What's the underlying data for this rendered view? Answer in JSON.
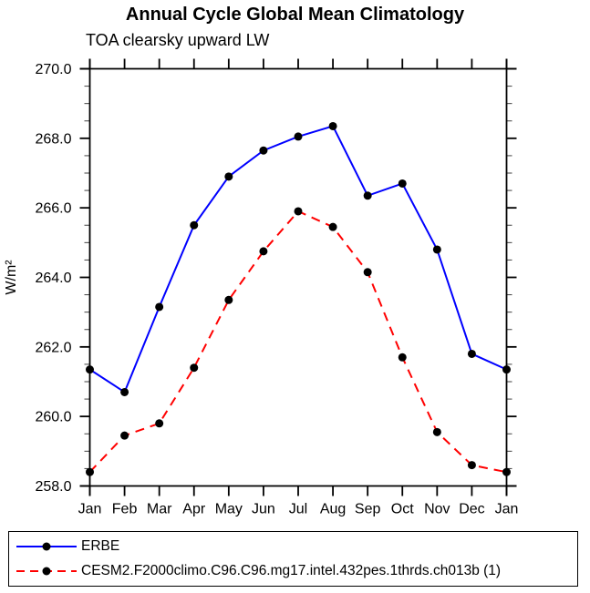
{
  "title": "Annual Cycle Global Mean Climatology",
  "subtitle": "TOA clearsky upward LW",
  "chart_data": {
    "type": "line",
    "x_categories": [
      "Jan",
      "Feb",
      "Mar",
      "Apr",
      "May",
      "Jun",
      "Jul",
      "Aug",
      "Sep",
      "Oct",
      "Nov",
      "Dec",
      "Jan"
    ],
    "xlabel": "",
    "ylabel": "W/m²",
    "ylim": [
      258.0,
      270.0
    ],
    "ytick_major_interval": 2.0,
    "ytick_minor_interval": 0.5,
    "ytick_labels": [
      "258.0",
      "260.0",
      "262.0",
      "264.0",
      "266.0",
      "268.0",
      "270.0"
    ],
    "grid": "off",
    "legend_position": "bottom",
    "frame_color": "#000000",
    "series": [
      {
        "name": "ERBE",
        "color": "#0000ff",
        "line_style": "solid",
        "marker": "filled-circle",
        "marker_color": "#000000",
        "values": [
          261.35,
          260.7,
          263.15,
          265.5,
          266.9,
          267.65,
          268.05,
          268.35,
          266.35,
          266.7,
          264.8,
          261.8,
          261.35
        ]
      },
      {
        "name": "CESM2.F2000climo.C96.C96.mg17.intel.432pes.1thrds.ch013b (1)",
        "color": "#ff0000",
        "line_style": "dashed",
        "marker": "filled-circle",
        "marker_color": "#000000",
        "values": [
          258.4,
          259.45,
          259.8,
          261.4,
          263.35,
          264.75,
          265.9,
          265.45,
          264.15,
          261.7,
          259.55,
          258.6,
          258.4
        ]
      }
    ]
  }
}
